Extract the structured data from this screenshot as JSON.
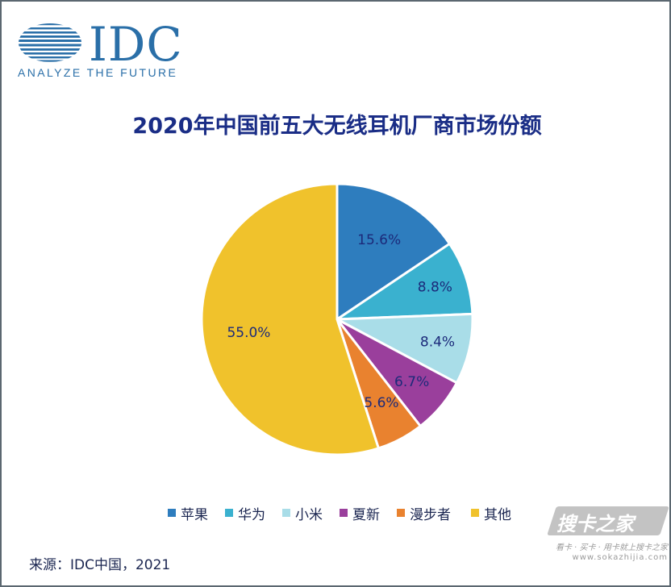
{
  "logo": {
    "wordmark": "IDC",
    "tagline": "ANALYZE THE FUTURE",
    "color": "#2a6fa8"
  },
  "chart_data": {
    "type": "pie",
    "title": "2020年中国前五大无线耳机厂商市场份额",
    "categories": [
      "苹果",
      "华为",
      "小米",
      "夏新",
      "漫步者",
      "其他"
    ],
    "values": [
      15.6,
      8.8,
      8.4,
      6.7,
      5.6,
      55.0
    ],
    "value_labels": [
      "15.6%",
      "8.8%",
      "8.4%",
      "6.7%",
      "5.6%",
      "55.0%"
    ],
    "colors": [
      "#2e7dbe",
      "#3ab1cf",
      "#a9dde8",
      "#9a3f9c",
      "#e9822f",
      "#f0c22c"
    ],
    "start": "12 o'clock",
    "direction": "clockwise",
    "legend_position": "bottom"
  },
  "source": "来源：IDC中国，2021",
  "watermark": {
    "name": "搜卡之家",
    "slogan": "看卡 · 买卡 · 用卡就上搜卡之家",
    "url": "www.sokazhijia.com"
  }
}
